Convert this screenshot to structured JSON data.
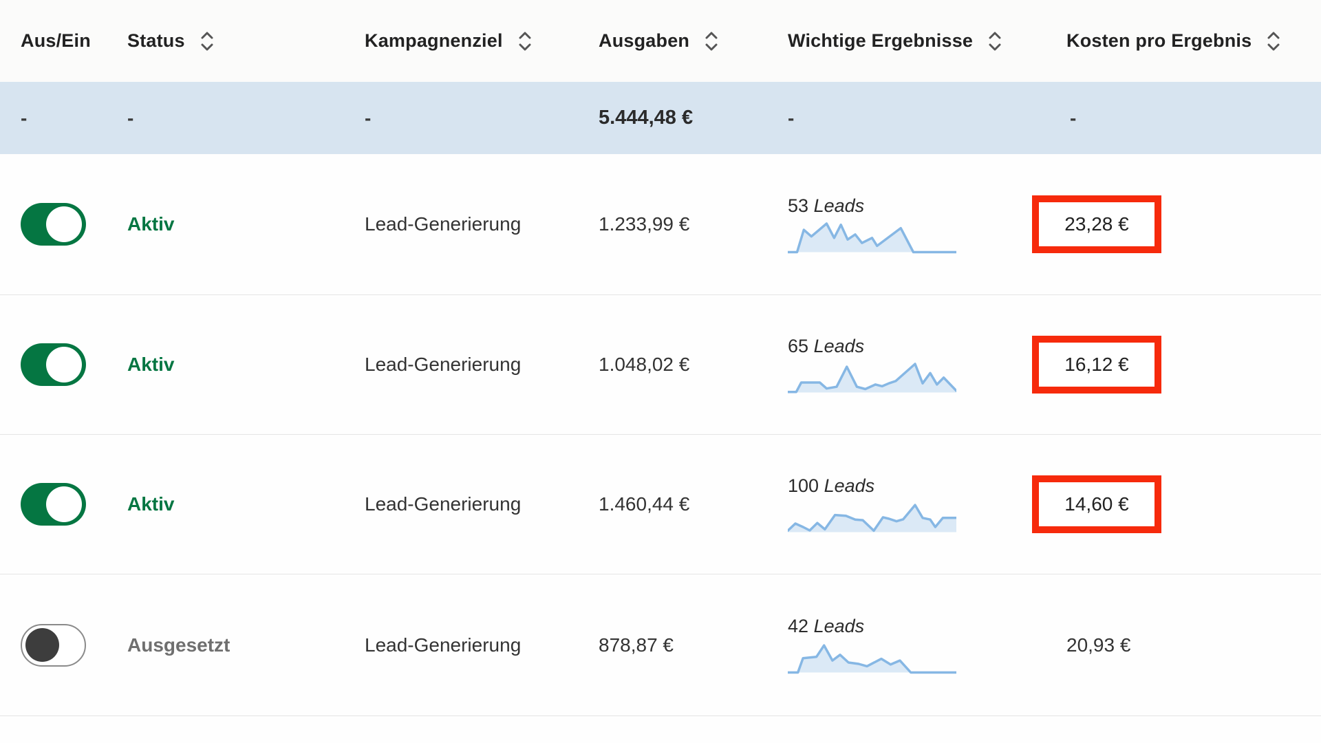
{
  "table": {
    "columns": [
      {
        "label": "Aus/Ein",
        "sortable": false
      },
      {
        "label": "Status",
        "sortable": true
      },
      {
        "label": "Kampagnenziel",
        "sortable": true
      },
      {
        "label": "Ausgaben",
        "sortable": true
      },
      {
        "label": "Wichtige Ergebnisse",
        "sortable": true
      },
      {
        "label": "Kosten pro Ergebnis",
        "sortable": true
      }
    ],
    "summary": {
      "toggle": "-",
      "status": "-",
      "objective": "-",
      "spend": "5.444,48 €",
      "results": "-",
      "cost": "-"
    },
    "rows": [
      {
        "toggle_on": true,
        "status": "Aktiv",
        "objective": "Lead-Generierung",
        "spend": "1.233,99 €",
        "results_count": "53",
        "results_unit": "Leads",
        "cost": "23,28 €",
        "cost_highlighted": true,
        "sparkline": [
          [
            0,
            0
          ],
          [
            0.055,
            0
          ],
          [
            0.095,
            0.78
          ],
          [
            0.14,
            0.55
          ],
          [
            0.23,
            1.0
          ],
          [
            0.275,
            0.5
          ],
          [
            0.315,
            0.96
          ],
          [
            0.355,
            0.44
          ],
          [
            0.4,
            0.62
          ],
          [
            0.44,
            0.32
          ],
          [
            0.5,
            0.5
          ],
          [
            0.53,
            0.22
          ],
          [
            0.67,
            0.84
          ],
          [
            0.745,
            0
          ],
          [
            1,
            0
          ]
        ]
      },
      {
        "toggle_on": true,
        "status": "Aktiv",
        "objective": "Lead-Generierung",
        "spend": "1.048,02 €",
        "results_count": "65",
        "results_unit": "Leads",
        "cost": "16,12 €",
        "cost_highlighted": true,
        "sparkline": [
          [
            0,
            0.02
          ],
          [
            0.05,
            0.02
          ],
          [
            0.08,
            0.35
          ],
          [
            0.19,
            0.35
          ],
          [
            0.23,
            0.14
          ],
          [
            0.29,
            0.2
          ],
          [
            0.35,
            0.9
          ],
          [
            0.41,
            0.2
          ],
          [
            0.46,
            0.12
          ],
          [
            0.52,
            0.28
          ],
          [
            0.56,
            0.22
          ],
          [
            0.6,
            0.32
          ],
          [
            0.64,
            0.4
          ],
          [
            0.755,
            1.0
          ],
          [
            0.8,
            0.32
          ],
          [
            0.845,
            0.68
          ],
          [
            0.885,
            0.28
          ],
          [
            0.925,
            0.52
          ],
          [
            1,
            0.06
          ]
        ]
      },
      {
        "toggle_on": true,
        "status": "Aktiv",
        "objective": "Lead-Generierung",
        "spend": "1.460,44 €",
        "results_count": "100",
        "results_unit": "Leads",
        "cost": "14,60 €",
        "cost_highlighted": true,
        "sparkline": [
          [
            0,
            0.05
          ],
          [
            0.045,
            0.3
          ],
          [
            0.09,
            0.18
          ],
          [
            0.13,
            0.06
          ],
          [
            0.175,
            0.32
          ],
          [
            0.22,
            0.1
          ],
          [
            0.28,
            0.6
          ],
          [
            0.345,
            0.57
          ],
          [
            0.4,
            0.44
          ],
          [
            0.445,
            0.42
          ],
          [
            0.51,
            0.05
          ],
          [
            0.565,
            0.52
          ],
          [
            0.6,
            0.47
          ],
          [
            0.645,
            0.38
          ],
          [
            0.685,
            0.45
          ],
          [
            0.755,
            0.95
          ],
          [
            0.8,
            0.5
          ],
          [
            0.845,
            0.44
          ],
          [
            0.875,
            0.18
          ],
          [
            0.92,
            0.5
          ],
          [
            1,
            0.5
          ]
        ]
      },
      {
        "toggle_on": false,
        "status": "Ausgesetzt",
        "objective": "Lead-Generierung",
        "spend": "878,87 €",
        "results_count": "42",
        "results_unit": "Leads",
        "cost": "20,93 €",
        "cost_highlighted": false,
        "sparkline": [
          [
            0,
            0
          ],
          [
            0.06,
            0
          ],
          [
            0.09,
            0.5
          ],
          [
            0.17,
            0.55
          ],
          [
            0.215,
            0.95
          ],
          [
            0.265,
            0.42
          ],
          [
            0.31,
            0.62
          ],
          [
            0.36,
            0.35
          ],
          [
            0.42,
            0.3
          ],
          [
            0.47,
            0.22
          ],
          [
            0.555,
            0.48
          ],
          [
            0.61,
            0.28
          ],
          [
            0.665,
            0.42
          ],
          [
            0.73,
            0
          ],
          [
            1,
            0
          ]
        ]
      }
    ]
  },
  "colors": {
    "toggle_on_green": "#057642",
    "status_active_green": "#057642",
    "highlight_red": "#f62a0c",
    "summary_row_blue": "#d7e4f0",
    "sparkline_stroke": "#86b7e4",
    "sparkline_fill": "#dbe9f6"
  },
  "icons": {
    "sort": "sort-chevrons"
  }
}
